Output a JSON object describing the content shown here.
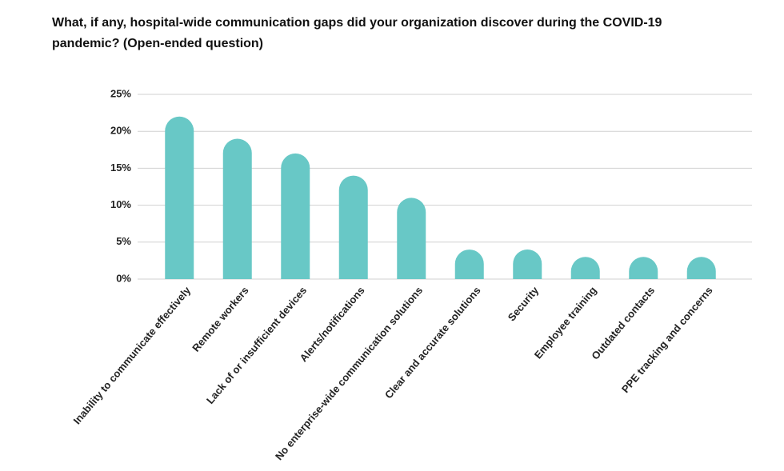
{
  "chart_data": {
    "type": "bar",
    "title": "What, if any, hospital-wide communication gaps did your organization discover during the COVID-19 pandemic? (Open-ended question)",
    "categories": [
      "Inability to communicate effectively",
      "Remote workers",
      "Lack of or insufficient devices",
      "Alerts/notifications",
      "No enterprise-wide communication solutions",
      "Clear and accurate solutions",
      "Security",
      "Employee training",
      "Outdated contacts",
      "PPE tracking and concerns"
    ],
    "values": [
      22,
      19,
      17,
      14,
      11,
      4,
      4,
      3,
      3,
      3
    ],
    "color": "#68c8c6",
    "ylim": [
      0,
      25
    ],
    "yticks": [
      {
        "value": 0,
        "label": "0%"
      },
      {
        "value": 5,
        "label": "5%"
      },
      {
        "value": 10,
        "label": "10%"
      },
      {
        "value": 15,
        "label": "15%"
      },
      {
        "value": 20,
        "label": "20%"
      },
      {
        "value": 25,
        "label": "25%"
      }
    ],
    "grid": true
  }
}
